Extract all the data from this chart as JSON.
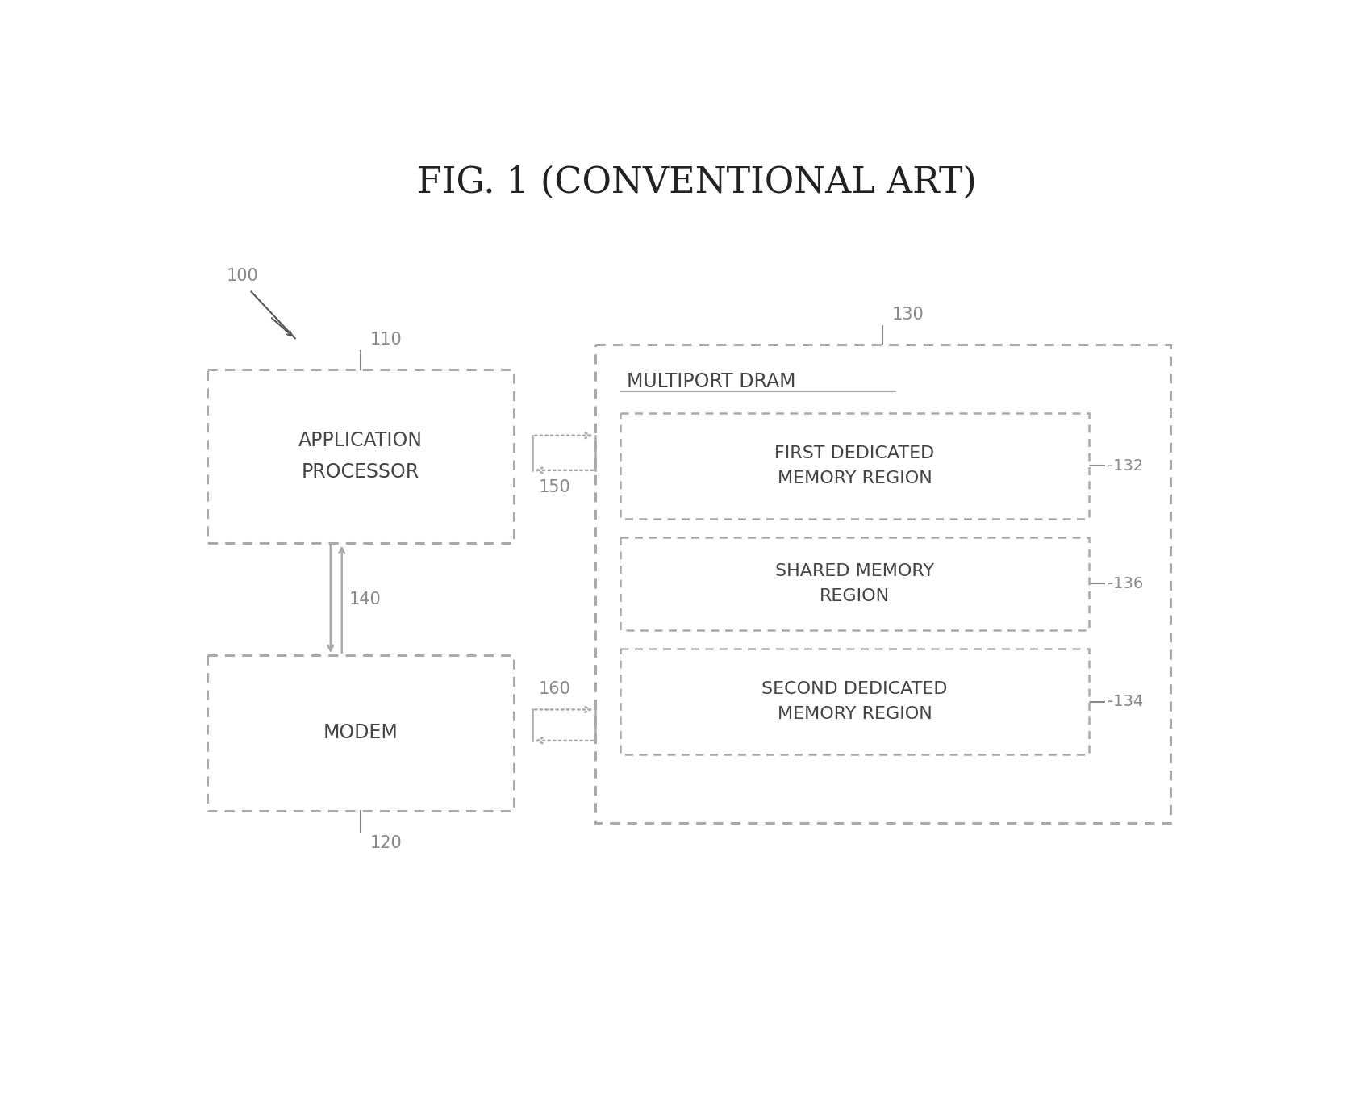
{
  "title": "FIG. 1 (CONVENTIONAL ART)",
  "title_fontsize": 32,
  "bg_color": "#ffffff",
  "box_edge_color": "#aaaaaa",
  "box_face_color": "#ffffff",
  "text_color": "#444444",
  "label_color": "#888888",
  "fig_width": 16.86,
  "fig_height": 13.77,
  "label_100": "100",
  "label_110": "110",
  "label_120": "120",
  "label_130": "130",
  "label_132": "132",
  "label_134": "134",
  "label_136": "136",
  "label_140": "140",
  "label_150": "150",
  "label_160": "160",
  "ap_text": "APPLICATION\nPROCESSOR",
  "modem_text": "MODEM",
  "dram_label": "MULTIPORT DRAM",
  "mem1_text": "FIRST DEDICATED\nMEMORY REGION",
  "mem_shared_text": "SHARED MEMORY\nREGION",
  "mem2_text": "SECOND DEDICATED\nMEMORY REGION"
}
